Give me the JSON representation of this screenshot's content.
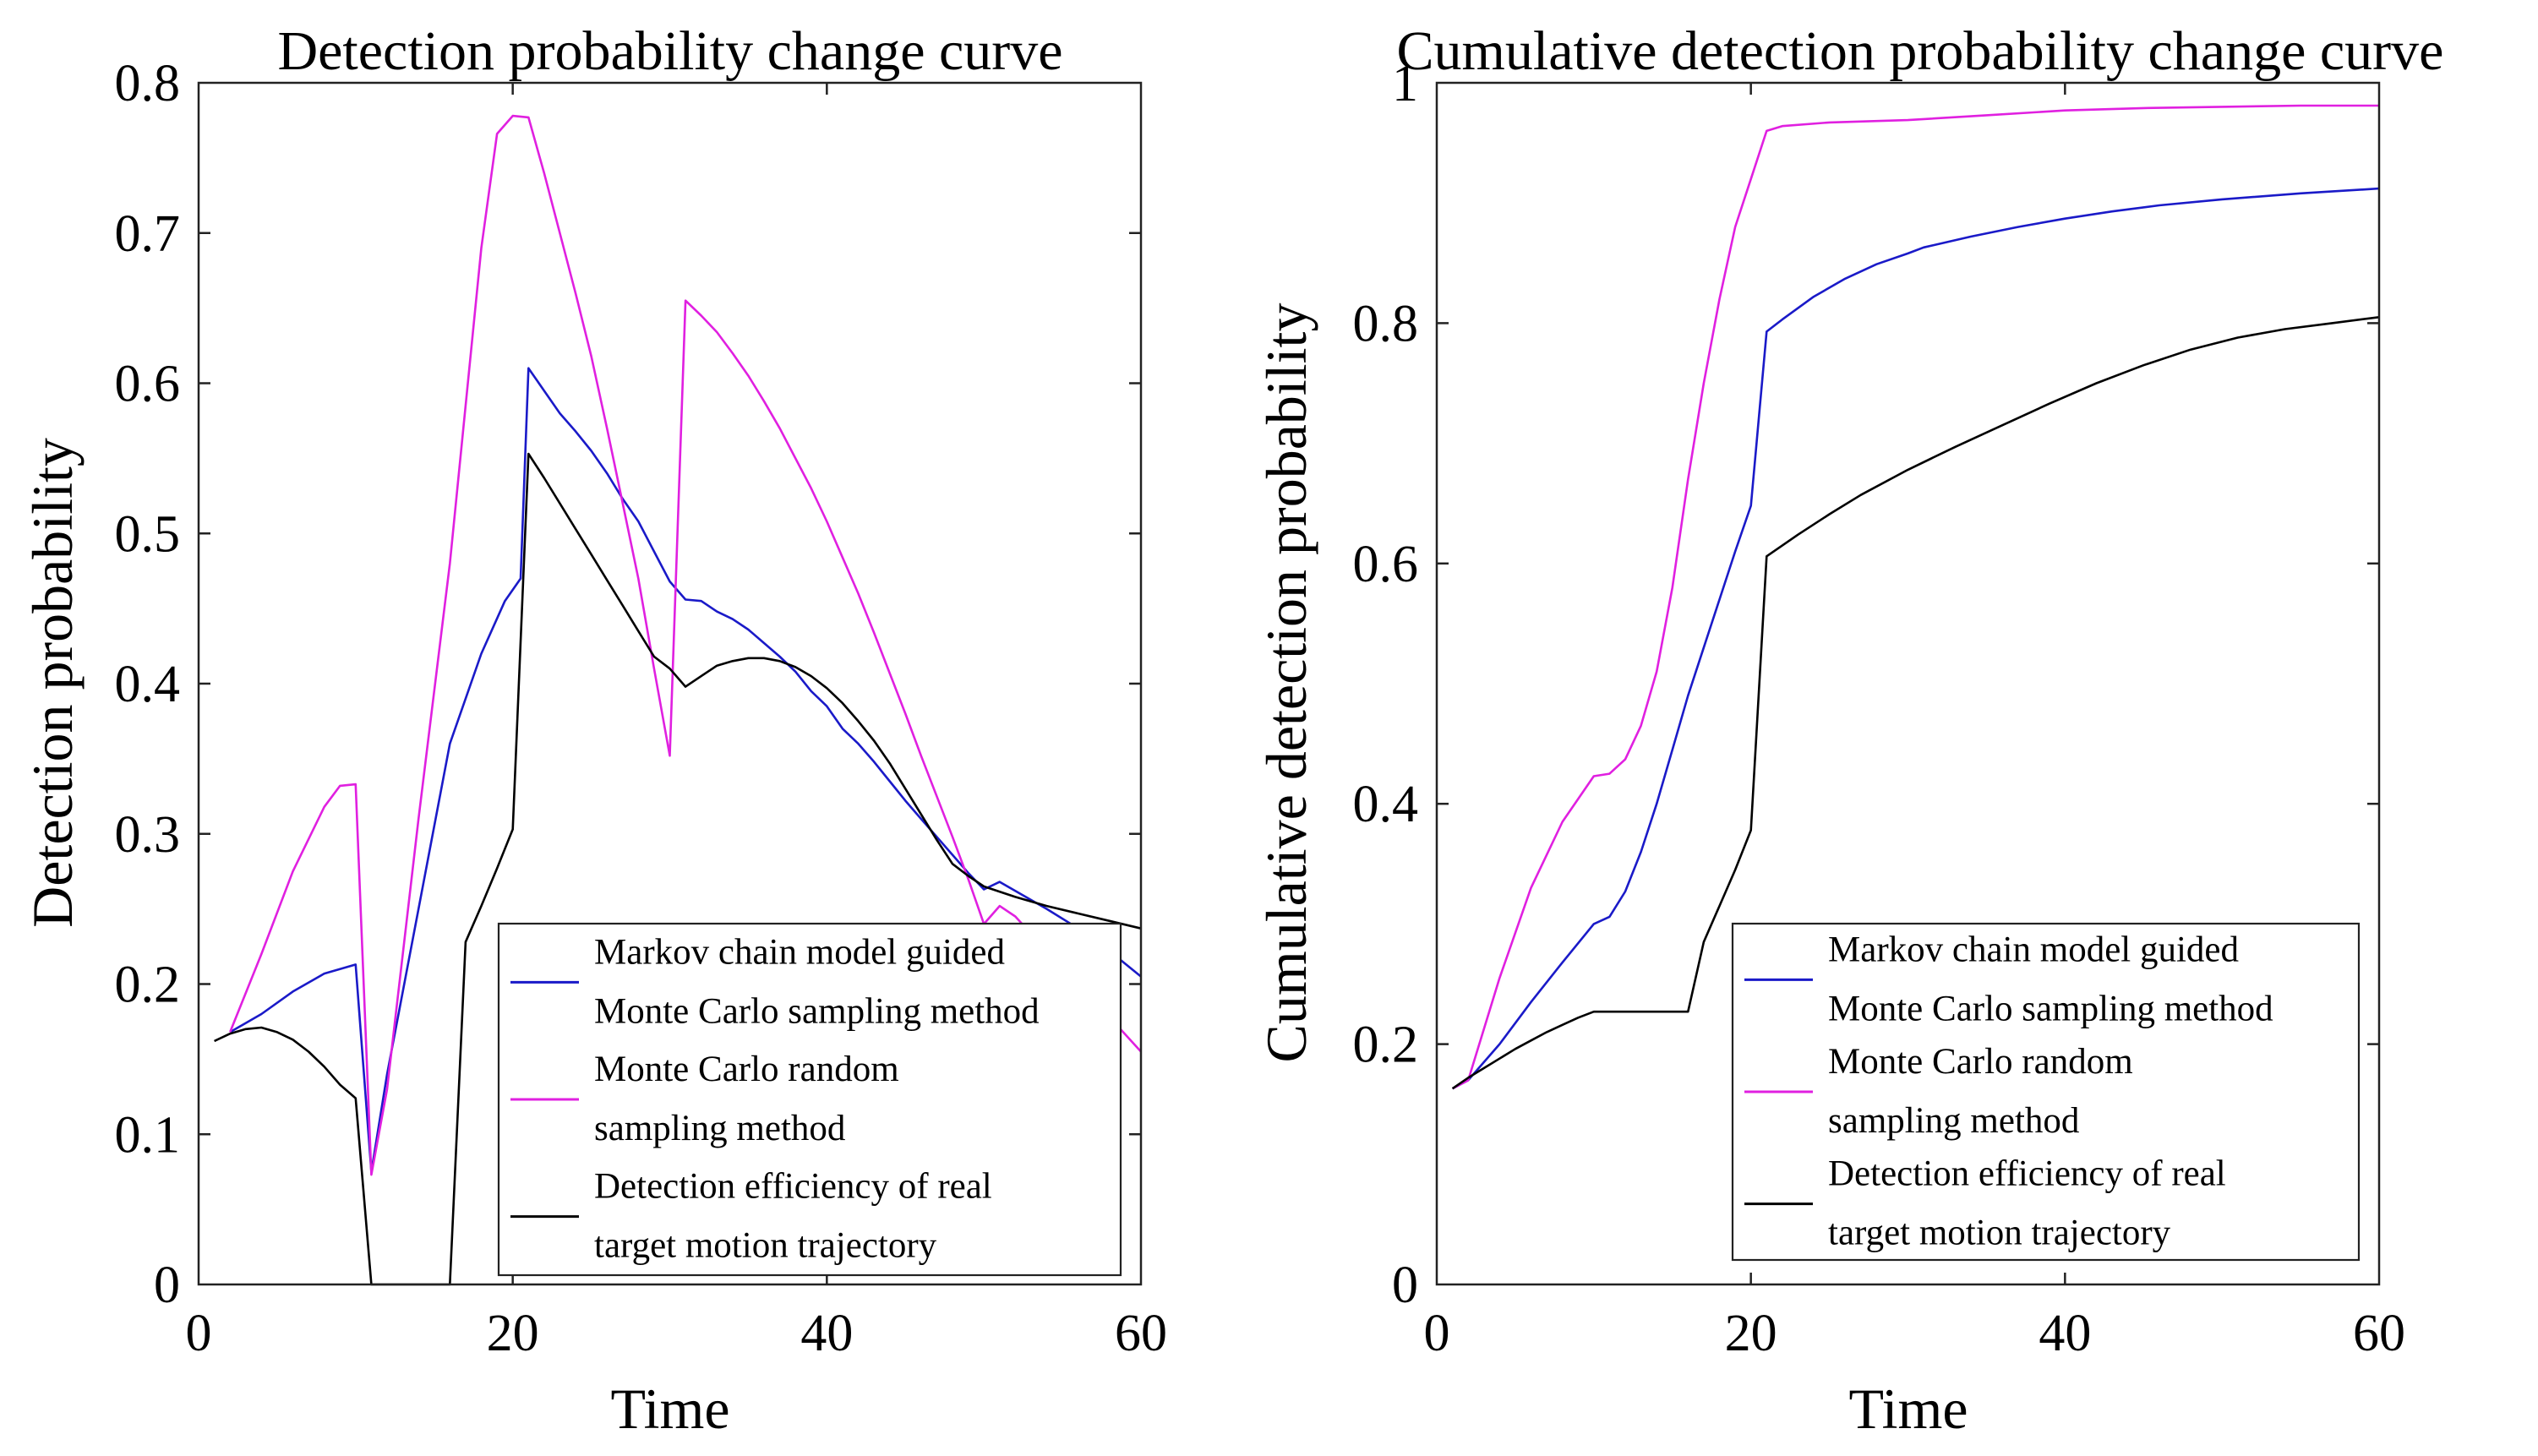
{
  "chart_data": [
    {
      "type": "line",
      "title": "Detection probability change curve",
      "xlabel": "Time",
      "ylabel": "Detection probability",
      "xlim": [
        0,
        60
      ],
      "ylim": [
        0,
        0.8
      ],
      "xticks": [
        0,
        20,
        40,
        60
      ],
      "yticks": [
        0,
        0.1,
        0.2,
        0.3,
        0.4,
        0.5,
        0.6,
        0.7,
        0.8
      ],
      "xtick_labels": [
        "0",
        "20",
        "40",
        "60"
      ],
      "ytick_labels": [
        "0",
        "0.1",
        "0.2",
        "0.3",
        "0.4",
        "0.5",
        "0.6",
        "0.7",
        "0.8"
      ],
      "legend_position": "bottom-right",
      "series": [
        {
          "name": "Markov chain model guided Monte Carlo sampling method",
          "legend_lines": [
            "Markov chain model guided",
            "Monte Carlo sampling method"
          ],
          "color": "#1a1ac8",
          "points": [
            [
              2,
              0.168
            ],
            [
              4,
              0.18
            ],
            [
              6,
              0.195
            ],
            [
              8,
              0.207
            ],
            [
              10,
              0.213
            ],
            [
              11,
              0.075
            ],
            [
              12,
              0.14
            ],
            [
              14,
              0.25
            ],
            [
              16,
              0.36
            ],
            [
              18,
              0.42
            ],
            [
              19.5,
              0.455
            ],
            [
              20.5,
              0.47
            ],
            [
              21,
              0.61
            ],
            [
              22,
              0.595
            ],
            [
              23,
              0.58
            ],
            [
              24,
              0.568
            ],
            [
              25,
              0.555
            ],
            [
              26,
              0.54
            ],
            [
              27,
              0.523
            ],
            [
              28,
              0.508
            ],
            [
              29,
              0.488
            ],
            [
              30,
              0.468
            ],
            [
              31,
              0.456
            ],
            [
              32,
              0.455
            ],
            [
              33,
              0.448
            ],
            [
              34,
              0.443
            ],
            [
              35,
              0.436
            ],
            [
              36,
              0.427
            ],
            [
              37,
              0.418
            ],
            [
              38,
              0.408
            ],
            [
              39,
              0.395
            ],
            [
              40,
              0.385
            ],
            [
              41,
              0.37
            ],
            [
              42,
              0.36
            ],
            [
              43,
              0.348
            ],
            [
              44,
              0.335
            ],
            [
              45,
              0.322
            ],
            [
              46,
              0.31
            ],
            [
              47,
              0.298
            ],
            [
              48,
              0.286
            ],
            [
              49,
              0.274
            ],
            [
              50,
              0.263
            ],
            [
              51,
              0.268
            ],
            [
              52,
              0.262
            ],
            [
              54,
              0.25
            ],
            [
              56,
              0.237
            ],
            [
              58,
              0.222
            ],
            [
              60,
              0.205
            ]
          ]
        },
        {
          "name": "Monte Carlo random sampling method",
          "legend_lines": [
            "Monte Carlo random",
            "sampling method"
          ],
          "color": "#e020e0",
          "points": [
            [
              2,
              0.168
            ],
            [
              4,
              0.22
            ],
            [
              6,
              0.275
            ],
            [
              8,
              0.318
            ],
            [
              9,
              0.332
            ],
            [
              10,
              0.333
            ],
            [
              11,
              0.073
            ],
            [
              12,
              0.13
            ],
            [
              14,
              0.31
            ],
            [
              16,
              0.48
            ],
            [
              18,
              0.69
            ],
            [
              19,
              0.766
            ],
            [
              20,
              0.778
            ],
            [
              21,
              0.777
            ],
            [
              22,
              0.74
            ],
            [
              23,
              0.7
            ],
            [
              24,
              0.66
            ],
            [
              25,
              0.618
            ],
            [
              26,
              0.57
            ],
            [
              27,
              0.52
            ],
            [
              28,
              0.47
            ],
            [
              29,
              0.41
            ],
            [
              30,
              0.352
            ],
            [
              31,
              0.655
            ],
            [
              32,
              0.645
            ],
            [
              33,
              0.634
            ],
            [
              34,
              0.62
            ],
            [
              35,
              0.605
            ],
            [
              36,
              0.588
            ],
            [
              37,
              0.57
            ],
            [
              38,
              0.55
            ],
            [
              39,
              0.53
            ],
            [
              40,
              0.508
            ],
            [
              41,
              0.484
            ],
            [
              42,
              0.46
            ],
            [
              43,
              0.434
            ],
            [
              44,
              0.407
            ],
            [
              45,
              0.38
            ],
            [
              46,
              0.352
            ],
            [
              47,
              0.325
            ],
            [
              48,
              0.298
            ],
            [
              49,
              0.27
            ],
            [
              50,
              0.24
            ],
            [
              51,
              0.252
            ],
            [
              52,
              0.245
            ],
            [
              54,
              0.222
            ],
            [
              56,
              0.2
            ],
            [
              58,
              0.178
            ],
            [
              60,
              0.155
            ]
          ]
        },
        {
          "name": "Detection efficiency of real target motion trajectory",
          "legend_lines": [
            "Detection efficiency of real",
            "target motion trajectory"
          ],
          "color": "#000000",
          "points": [
            [
              1,
              0.162
            ],
            [
              2,
              0.167
            ],
            [
              3,
              0.17
            ],
            [
              4,
              0.171
            ],
            [
              5,
              0.168
            ],
            [
              6,
              0.163
            ],
            [
              7,
              0.155
            ],
            [
              8,
              0.145
            ],
            [
              9,
              0.133
            ],
            [
              10,
              0.124
            ],
            [
              11,
              0
            ],
            [
              12,
              0
            ],
            [
              13,
              0
            ],
            [
              14,
              0
            ],
            [
              15,
              0
            ],
            [
              16,
              0
            ],
            [
              17,
              0.228
            ],
            [
              18,
              0.252
            ],
            [
              19,
              0.277
            ],
            [
              20,
              0.303
            ],
            [
              21,
              0.553
            ],
            [
              22,
              0.537
            ],
            [
              23,
              0.52
            ],
            [
              24,
              0.503
            ],
            [
              25,
              0.486
            ],
            [
              26,
              0.469
            ],
            [
              27,
              0.452
            ],
            [
              28,
              0.435
            ],
            [
              29,
              0.418
            ],
            [
              30,
              0.41
            ],
            [
              31,
              0.398
            ],
            [
              32,
              0.405
            ],
            [
              33,
              0.412
            ],
            [
              34,
              0.415
            ],
            [
              35,
              0.417
            ],
            [
              36,
              0.417
            ],
            [
              37,
              0.415
            ],
            [
              38,
              0.411
            ],
            [
              39,
              0.405
            ],
            [
              40,
              0.397
            ],
            [
              41,
              0.387
            ],
            [
              42,
              0.375
            ],
            [
              43,
              0.362
            ],
            [
              44,
              0.347
            ],
            [
              45,
              0.33
            ],
            [
              46,
              0.313
            ],
            [
              47,
              0.296
            ],
            [
              48,
              0.28
            ],
            [
              49,
              0.272
            ],
            [
              50,
              0.265
            ],
            [
              52,
              0.258
            ],
            [
              54,
              0.252
            ],
            [
              56,
              0.247
            ],
            [
              58,
              0.242
            ],
            [
              60,
              0.237
            ]
          ]
        }
      ]
    },
    {
      "type": "line",
      "title": "Cumulative detection probability change curve",
      "xlabel": "Time",
      "ylabel": "Cumulative detection probability",
      "xlim": [
        0,
        60
      ],
      "ylim": [
        0,
        1
      ],
      "xticks": [
        0,
        20,
        40,
        60
      ],
      "yticks": [
        0,
        0.2,
        0.4,
        0.6,
        0.8,
        1
      ],
      "xtick_labels": [
        "0",
        "20",
        "40",
        "60"
      ],
      "ytick_labels": [
        "0",
        "0.2",
        "0.4",
        "0.6",
        "0.8",
        "1"
      ],
      "legend_position": "bottom-right",
      "series": [
        {
          "name": "Markov chain model guided Monte Carlo sampling method",
          "legend_lines": [
            "Markov chain model guided",
            "Monte Carlo sampling method"
          ],
          "color": "#1a1ac8",
          "points": [
            [
              1,
              0.163
            ],
            [
              2,
              0.17
            ],
            [
              4,
              0.2
            ],
            [
              6,
              0.235
            ],
            [
              8,
              0.268
            ],
            [
              10,
              0.3
            ],
            [
              11,
              0.306
            ],
            [
              12,
              0.327
            ],
            [
              13,
              0.36
            ],
            [
              14,
              0.4
            ],
            [
              15,
              0.445
            ],
            [
              16,
              0.49
            ],
            [
              17,
              0.53
            ],
            [
              18,
              0.57
            ],
            [
              19,
              0.61
            ],
            [
              20,
              0.648
            ],
            [
              21,
              0.793
            ],
            [
              22,
              0.803
            ],
            [
              24,
              0.822
            ],
            [
              26,
              0.837
            ],
            [
              28,
              0.849
            ],
            [
              30,
              0.858
            ],
            [
              31,
              0.863
            ],
            [
              34,
              0.872
            ],
            [
              37,
              0.88
            ],
            [
              40,
              0.887
            ],
            [
              43,
              0.893
            ],
            [
              46,
              0.898
            ],
            [
              50,
              0.903
            ],
            [
              55,
              0.908
            ],
            [
              60,
              0.912
            ]
          ]
        },
        {
          "name": "Monte Carlo random sampling method",
          "legend_lines": [
            "Monte Carlo random",
            "sampling method"
          ],
          "color": "#e020e0",
          "points": [
            [
              1,
              0.163
            ],
            [
              2,
              0.17
            ],
            [
              4,
              0.255
            ],
            [
              6,
              0.33
            ],
            [
              8,
              0.385
            ],
            [
              10,
              0.423
            ],
            [
              11,
              0.425
            ],
            [
              12,
              0.437
            ],
            [
              13,
              0.465
            ],
            [
              14,
              0.51
            ],
            [
              15,
              0.58
            ],
            [
              16,
              0.67
            ],
            [
              17,
              0.75
            ],
            [
              18,
              0.82
            ],
            [
              19,
              0.88
            ],
            [
              20,
              0.92
            ],
            [
              21,
              0.96
            ],
            [
              22,
              0.964
            ],
            [
              25,
              0.967
            ],
            [
              30,
              0.969
            ],
            [
              35,
              0.973
            ],
            [
              40,
              0.977
            ],
            [
              45,
              0.979
            ],
            [
              50,
              0.98
            ],
            [
              55,
              0.981
            ],
            [
              60,
              0.981
            ]
          ]
        },
        {
          "name": "Detection efficiency of real target motion trajectory",
          "legend_lines": [
            "Detection efficiency of real",
            "target motion trajectory"
          ],
          "color": "#000000",
          "points": [
            [
              1,
              0.163
            ],
            [
              2,
              0.172
            ],
            [
              3,
              0.18
            ],
            [
              4,
              0.188
            ],
            [
              5,
              0.196
            ],
            [
              6,
              0.203
            ],
            [
              7,
              0.21
            ],
            [
              8,
              0.216
            ],
            [
              9,
              0.222
            ],
            [
              10,
              0.227
            ],
            [
              11,
              0.227
            ],
            [
              12,
              0.227
            ],
            [
              13,
              0.227
            ],
            [
              14,
              0.227
            ],
            [
              15,
              0.227
            ],
            [
              16,
              0.227
            ],
            [
              17,
              0.285
            ],
            [
              18,
              0.315
            ],
            [
              19,
              0.345
            ],
            [
              20,
              0.378
            ],
            [
              21,
              0.606
            ],
            [
              23,
              0.624
            ],
            [
              25,
              0.641
            ],
            [
              27,
              0.657
            ],
            [
              30,
              0.678
            ],
            [
              33,
              0.697
            ],
            [
              36,
              0.715
            ],
            [
              39,
              0.733
            ],
            [
              42,
              0.75
            ],
            [
              45,
              0.765
            ],
            [
              48,
              0.778
            ],
            [
              51,
              0.788
            ],
            [
              54,
              0.795
            ],
            [
              57,
              0.8
            ],
            [
              60,
              0.805
            ]
          ]
        }
      ]
    }
  ]
}
